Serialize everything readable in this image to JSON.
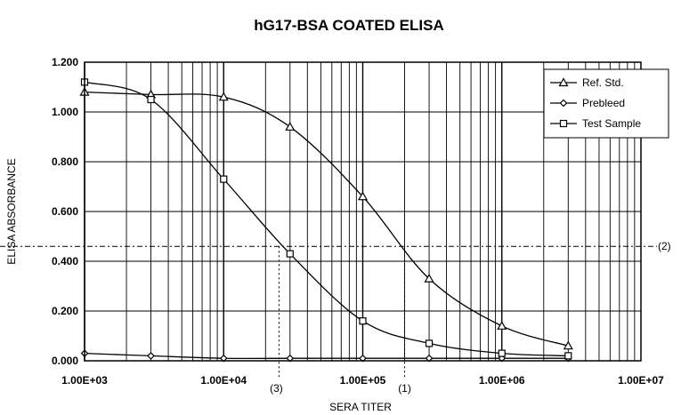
{
  "chart_data": {
    "type": "line",
    "title": "hG17-BSA COATED ELISA",
    "xlabel": "SERA TITER",
    "ylabel": "ELISA ABSORBANCE",
    "x_scale": "log",
    "xlim": [
      1000,
      10000000
    ],
    "ylim": [
      0,
      1.2
    ],
    "x_ticks": [
      1000,
      10000,
      100000,
      1000000,
      10000000
    ],
    "x_tick_labels": [
      "1.00E+03",
      "1.00E+04",
      "1.00E+05",
      "1.00E+06",
      "1.00E+07"
    ],
    "y_ticks": [
      0,
      0.2,
      0.4,
      0.6,
      0.8,
      1.0,
      1.2
    ],
    "y_tick_labels": [
      "0.000",
      "0.200",
      "0.400",
      "0.600",
      "0.800",
      "1.000",
      "1.200"
    ],
    "grid": true,
    "legend_position": "top-right",
    "series": [
      {
        "name": "Ref. Std.",
        "marker": "triangle",
        "x": [
          1000,
          3000,
          10000,
          30000,
          100000,
          300000,
          1000000,
          3000000
        ],
        "y": [
          1.08,
          1.07,
          1.06,
          0.94,
          0.66,
          0.33,
          0.14,
          0.06
        ]
      },
      {
        "name": "Prebleed",
        "marker": "diamond",
        "x": [
          1000,
          3000,
          10000,
          30000,
          100000,
          300000,
          1000000,
          3000000
        ],
        "y": [
          0.03,
          0.02,
          0.01,
          0.01,
          0.01,
          0.01,
          0.01,
          0.01
        ]
      },
      {
        "name": "Test Sample",
        "marker": "square",
        "x": [
          1000,
          3000,
          10000,
          30000,
          100000,
          300000,
          1000000,
          3000000
        ],
        "y": [
          1.12,
          1.05,
          0.73,
          0.43,
          0.16,
          0.07,
          0.03,
          0.02
        ]
      }
    ],
    "annotations": [
      {
        "label": "(2)",
        "axis": "y",
        "value": 0.46
      },
      {
        "label": "(1)",
        "axis": "x",
        "value": 200000
      },
      {
        "label": "(3)",
        "axis": "x",
        "value": 25000
      }
    ]
  }
}
